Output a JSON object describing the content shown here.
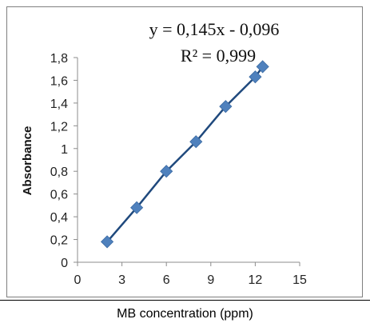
{
  "chart_data": {
    "type": "scatter",
    "title": "",
    "xlabel": "MB concentration (ppm)",
    "ylabel": "Absorbance",
    "xlim": [
      0,
      15
    ],
    "ylim": [
      0,
      1.8
    ],
    "x_ticks": [
      "0",
      "3",
      "6",
      "9",
      "12",
      "15"
    ],
    "y_ticks": [
      "0",
      "0,2",
      "0,4",
      "0,6",
      "0,8",
      "1",
      "1,2",
      "1,4",
      "1,6",
      "1,8"
    ],
    "grid": false,
    "legend": "none",
    "series": [
      {
        "points": [
          {
            "x": 2,
            "y": 0.18
          },
          {
            "x": 4,
            "y": 0.48
          },
          {
            "x": 6,
            "y": 0.8
          },
          {
            "x": 8,
            "y": 1.06
          },
          {
            "x": 10,
            "y": 1.37
          },
          {
            "x": 12,
            "y": 1.63
          },
          {
            "x": 12.5,
            "y": 1.72
          }
        ],
        "color": "#4f81bd"
      }
    ],
    "trendline": {
      "type": "linear",
      "slope": 0.145,
      "intercept": -0.096,
      "color": "#1f497d"
    },
    "annotations": {
      "equation": "y = 0,145x - 0,096",
      "r_squared": "R² = 0,999"
    }
  }
}
